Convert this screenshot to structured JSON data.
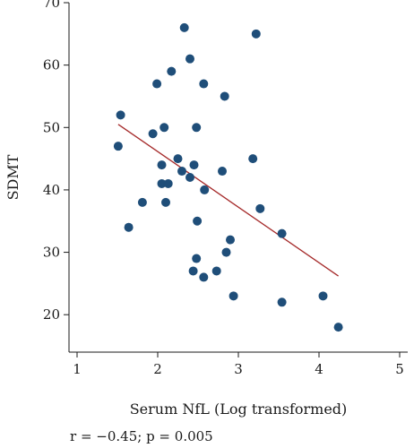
{
  "chart_data": {
    "type": "scatter",
    "xlabel": "Serum NfL (Log transformed)",
    "ylabel": "SDMT",
    "xlim": [
      0.9,
      5.1
    ],
    "ylim": [
      14,
      70
    ],
    "x_ticks": [
      1,
      2,
      3,
      4,
      5
    ],
    "y_ticks": [
      20,
      30,
      40,
      50,
      60,
      70
    ],
    "grid": false,
    "legend": "none",
    "points": [
      {
        "x": 2.33,
        "y": 66
      },
      {
        "x": 3.22,
        "y": 65
      },
      {
        "x": 2.4,
        "y": 61
      },
      {
        "x": 2.17,
        "y": 59
      },
      {
        "x": 1.99,
        "y": 57
      },
      {
        "x": 2.57,
        "y": 57
      },
      {
        "x": 2.83,
        "y": 55
      },
      {
        "x": 1.54,
        "y": 52
      },
      {
        "x": 2.08,
        "y": 50
      },
      {
        "x": 2.48,
        "y": 50
      },
      {
        "x": 1.94,
        "y": 49
      },
      {
        "x": 1.51,
        "y": 47
      },
      {
        "x": 3.18,
        "y": 45
      },
      {
        "x": 2.25,
        "y": 45
      },
      {
        "x": 2.05,
        "y": 44
      },
      {
        "x": 2.45,
        "y": 44
      },
      {
        "x": 2.3,
        "y": 43
      },
      {
        "x": 2.8,
        "y": 43
      },
      {
        "x": 2.4,
        "y": 42
      },
      {
        "x": 2.05,
        "y": 41
      },
      {
        "x": 2.13,
        "y": 41
      },
      {
        "x": 2.58,
        "y": 40
      },
      {
        "x": 1.81,
        "y": 38
      },
      {
        "x": 2.1,
        "y": 38
      },
      {
        "x": 3.27,
        "y": 37
      },
      {
        "x": 2.49,
        "y": 35
      },
      {
        "x": 1.64,
        "y": 34
      },
      {
        "x": 3.54,
        "y": 33
      },
      {
        "x": 2.9,
        "y": 32
      },
      {
        "x": 2.85,
        "y": 30
      },
      {
        "x": 2.48,
        "y": 29
      },
      {
        "x": 2.44,
        "y": 27
      },
      {
        "x": 2.73,
        "y": 27
      },
      {
        "x": 2.57,
        "y": 26
      },
      {
        "x": 2.94,
        "y": 23
      },
      {
        "x": 4.05,
        "y": 23
      },
      {
        "x": 3.54,
        "y": 22
      },
      {
        "x": 4.24,
        "y": 18
      }
    ],
    "fit_line": {
      "x": [
        1.51,
        4.24
      ],
      "y": [
        50.5,
        26.2
      ]
    },
    "colors": {
      "points": "#1f4e79",
      "fit_line": "#a52a2a",
      "axis": "#1a1a1a"
    },
    "annotation": "r = −0.45; p = 0.005"
  }
}
